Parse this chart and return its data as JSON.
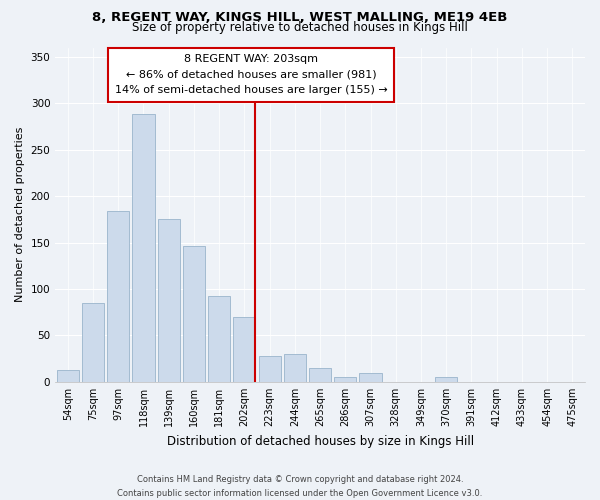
{
  "title_line1": "8, REGENT WAY, KINGS HILL, WEST MALLING, ME19 4EB",
  "title_line2": "Size of property relative to detached houses in Kings Hill",
  "xlabel": "Distribution of detached houses by size in Kings Hill",
  "ylabel": "Number of detached properties",
  "bar_labels": [
    "54sqm",
    "75sqm",
    "97sqm",
    "118sqm",
    "139sqm",
    "160sqm",
    "181sqm",
    "202sqm",
    "223sqm",
    "244sqm",
    "265sqm",
    "286sqm",
    "307sqm",
    "328sqm",
    "349sqm",
    "370sqm",
    "391sqm",
    "412sqm",
    "433sqm",
    "454sqm",
    "475sqm"
  ],
  "bar_heights": [
    13,
    85,
    184,
    288,
    175,
    146,
    92,
    70,
    28,
    30,
    15,
    5,
    10,
    0,
    0,
    5,
    0,
    0,
    0,
    0,
    0
  ],
  "bar_color": "#ccdaeb",
  "bar_edge_color": "#9ab4cc",
  "vline_color": "#cc0000",
  "annotation_title": "8 REGENT WAY: 203sqm",
  "annotation_line1": "← 86% of detached houses are smaller (981)",
  "annotation_line2": "14% of semi-detached houses are larger (155) →",
  "annotation_box_edge": "#cc0000",
  "ylim": [
    0,
    360
  ],
  "yticks": [
    0,
    50,
    100,
    150,
    200,
    250,
    300,
    350
  ],
  "footer_line1": "Contains HM Land Registry data © Crown copyright and database right 2024.",
  "footer_line2": "Contains public sector information licensed under the Open Government Licence v3.0.",
  "background_color": "#eef2f7",
  "grid_color": "#ffffff",
  "title1_fontsize": 9.5,
  "title2_fontsize": 8.5,
  "ylabel_fontsize": 8,
  "xlabel_fontsize": 8.5,
  "tick_fontsize": 7,
  "annotation_fontsize": 8,
  "footer_fontsize": 6
}
